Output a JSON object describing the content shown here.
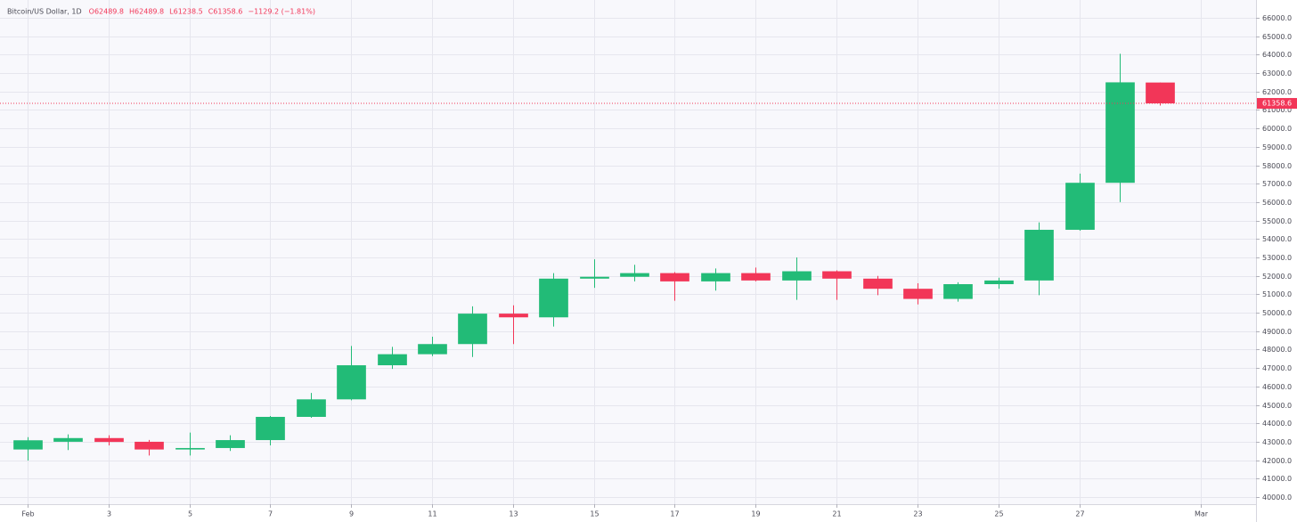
{
  "chart_data": {
    "type": "candlestick",
    "header": {
      "symbol": "Bitcoin/US Dollar, 1D",
      "ohlc": [
        "O62489.8",
        "H62489.8",
        "L61238.5",
        "C61358.6"
      ],
      "change": "−1129.2 (−1.81%)"
    },
    "x": [
      1,
      2,
      3,
      4,
      5,
      6,
      7,
      8,
      9,
      10,
      11,
      12,
      13,
      14,
      15,
      16,
      17,
      18,
      19,
      20,
      21,
      22,
      23,
      24,
      25,
      26,
      27,
      28,
      29
    ],
    "open": [
      42580,
      43000,
      43200,
      43000,
      42580,
      42660,
      43090,
      44350,
      45300,
      47150,
      47750,
      48300,
      49950,
      49750,
      51850,
      51950,
      52150,
      51700,
      52150,
      51750,
      52250,
      51850,
      51300,
      50750,
      51550,
      51750,
      54500,
      57050,
      62489.8
    ],
    "high": [
      43250,
      43400,
      43350,
      43100,
      43500,
      43350,
      44400,
      45650,
      48200,
      48150,
      48700,
      50350,
      50400,
      52150,
      52900,
      52600,
      52200,
      52400,
      52450,
      53000,
      52300,
      52000,
      51600,
      51650,
      51900,
      54900,
      57550,
      64050,
      62489.8
    ],
    "low": [
      41980,
      42550,
      42800,
      42250,
      42250,
      42500,
      42800,
      44300,
      45250,
      46950,
      47650,
      47600,
      48300,
      49250,
      51350,
      51700,
      50650,
      51200,
      51700,
      50700,
      50700,
      50950,
      50450,
      50600,
      51300,
      50950,
      54450,
      56000,
      61238.5
    ],
    "close": [
      43080,
      43200,
      42990,
      42580,
      42660,
      43090,
      44350,
      45300,
      47150,
      47750,
      48300,
      49950,
      49750,
      51850,
      51950,
      52150,
      51700,
      52150,
      51750,
      52250,
      51850,
      51300,
      50750,
      51550,
      51750,
      54500,
      57050,
      62500,
      61358.6
    ],
    "up_color": "#22bb77",
    "down_color": "#f23658",
    "last_price": {
      "value": 61358.6,
      "label": "61358.6"
    },
    "xlim": [
      0.32,
      31.37
    ],
    "xticks": [
      {
        "value": 1,
        "label": "Feb"
      },
      3,
      5,
      7,
      9,
      11,
      13,
      15,
      17,
      19,
      21,
      23,
      25,
      27,
      {
        "value": 30,
        "label": "Mar"
      }
    ],
    "ylim": [
      39613,
      66967
    ],
    "yticks": [
      {
        "value": 40000,
        "label": "40000.0"
      },
      {
        "value": 41000,
        "label": "41000.0"
      },
      {
        "value": 42000,
        "label": "42000.0"
      },
      {
        "value": 43000,
        "label": "43000.0"
      },
      {
        "value": 44000,
        "label": "44000.0"
      },
      {
        "value": 45000,
        "label": "45000.0"
      },
      {
        "value": 46000,
        "label": "46000.0"
      },
      {
        "value": 47000,
        "label": "47000.0"
      },
      {
        "value": 48000,
        "label": "48000.0"
      },
      {
        "value": 49000,
        "label": "49000.0"
      },
      {
        "value": 50000,
        "label": "50000.0"
      },
      {
        "value": 51000,
        "label": "51000.0"
      },
      {
        "value": 52000,
        "label": "52000.0"
      },
      {
        "value": 53000,
        "label": "53000.0"
      },
      {
        "value": 54000,
        "label": "54000.0"
      },
      {
        "value": 55000,
        "label": "55000.0"
      },
      {
        "value": 56000,
        "label": "56000.0"
      },
      {
        "value": 57000,
        "label": "57000.0"
      },
      {
        "value": 58000,
        "label": "58000.0"
      },
      {
        "value": 59000,
        "label": "59000.0"
      },
      {
        "value": 60000,
        "label": "60000.0"
      },
      {
        "value": 61000,
        "label": "61000.0"
      },
      {
        "value": 62000,
        "label": "62000.0"
      },
      {
        "value": 63000,
        "label": "63000.0"
      },
      {
        "value": 64000,
        "label": "64000.0"
      },
      {
        "value": 65000,
        "label": "65000.0"
      },
      {
        "value": 66000,
        "label": "66000.0"
      }
    ],
    "grid": true
  }
}
